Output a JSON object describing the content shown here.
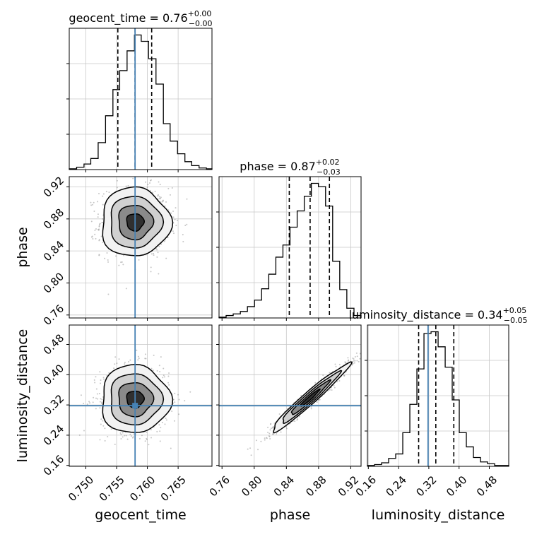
{
  "chart_data": {
    "type": "corner",
    "parameters": [
      {
        "name": "geocent_time",
        "axis_label": "geocent_time",
        "range": [
          0.7473,
          0.7705
        ],
        "ticks": [
          0.75,
          0.755,
          0.76,
          0.765
        ],
        "tick_labels": [
          "0.750",
          "0.755",
          "0.760",
          "0.765"
        ],
        "truth": 0.758,
        "median": 0.758,
        "q16": 0.7552,
        "q84": 0.7607,
        "title_value": "0.76",
        "title_plus": "+0.00",
        "title_minus": "−0.00",
        "hist_edges": [
          0.7473,
          0.7485,
          0.7497,
          0.7508,
          0.752,
          0.7532,
          0.7544,
          0.7555,
          0.7567,
          0.7579,
          0.759,
          0.7602,
          0.7614,
          0.7626,
          0.7637,
          0.7649,
          0.7661,
          0.7672,
          0.7684,
          0.7696,
          0.7705
        ],
        "hist_values": [
          1,
          3,
          7,
          14,
          34,
          68,
          101,
          125,
          150,
          170,
          162,
          140,
          108,
          58,
          36,
          20,
          10,
          5,
          2,
          1
        ]
      },
      {
        "name": "phase",
        "axis_label": "phase",
        "range": [
          0.7563,
          0.9328
        ],
        "ticks": [
          0.76,
          0.8,
          0.84,
          0.88,
          0.92
        ],
        "tick_labels": [
          "0.76",
          "0.80",
          "0.84",
          "0.88",
          "0.92"
        ],
        "truth": null,
        "median": 0.8695,
        "q16": 0.8436,
        "q84": 0.8935,
        "title_value": "0.87",
        "title_plus": "+0.02",
        "title_minus": "−0.03",
        "hist_edges": [
          0.7563,
          0.7651,
          0.7739,
          0.7828,
          0.7916,
          0.8004,
          0.8092,
          0.8181,
          0.8269,
          0.8357,
          0.8445,
          0.8534,
          0.8622,
          0.871,
          0.8798,
          0.8887,
          0.8975,
          0.9063,
          0.9151,
          0.924,
          0.9328
        ],
        "hist_values": [
          1,
          3,
          5,
          8,
          14,
          22,
          36,
          54,
          75,
          90,
          112,
          132,
          150,
          166,
          162,
          138,
          70,
          35,
          12,
          3
        ]
      },
      {
        "name": "luminosity_distance",
        "axis_label": "luminosity_distance",
        "range": [
          0.1576,
          0.5314
        ],
        "ticks": [
          0.16,
          0.24,
          0.32,
          0.4,
          0.48
        ],
        "tick_labels": [
          "0.16",
          "0.24",
          "0.32",
          "0.40",
          "0.48"
        ],
        "truth": 0.318,
        "median": 0.3385,
        "q16": 0.2931,
        "q84": 0.3861,
        "title_value": "0.34",
        "title_plus": "+0.05",
        "title_minus": "−0.05",
        "hist_edges": [
          0.1576,
          0.1763,
          0.195,
          0.2137,
          0.2324,
          0.2511,
          0.2698,
          0.2885,
          0.3072,
          0.3259,
          0.3446,
          0.3633,
          0.3819,
          0.4006,
          0.4193,
          0.438,
          0.4567,
          0.4754,
          0.4941,
          0.5128,
          0.5314
        ],
        "hist_values": [
          1,
          2,
          4,
          9,
          14,
          38,
          70,
          110,
          150,
          152,
          135,
          112,
          75,
          38,
          22,
          10,
          5,
          3,
          1,
          1
        ]
      }
    ],
    "truth_color": "#4682b4",
    "line_color": "#000000",
    "point_color": "#808080",
    "density_cmap": [
      "#ffffff",
      "#f0f0f0",
      "#b8b8b8",
      "#707070",
      "#000000"
    ],
    "grid": true,
    "pairs": [
      {
        "x": "geocent_time",
        "y": "phase",
        "center": [
          0.758,
          0.876
        ],
        "sd": [
          0.0028,
          0.0215
        ],
        "corr": 0.0
      },
      {
        "x": "geocent_time",
        "y": "luminosity_distance",
        "center": [
          0.758,
          0.335
        ],
        "sd": [
          0.0028,
          0.045
        ],
        "corr": 0.0
      },
      {
        "x": "phase",
        "y": "luminosity_distance",
        "center": [
          0.869,
          0.338
        ],
        "sd": [
          0.024,
          0.045
        ],
        "corr": 0.97
      }
    ]
  }
}
